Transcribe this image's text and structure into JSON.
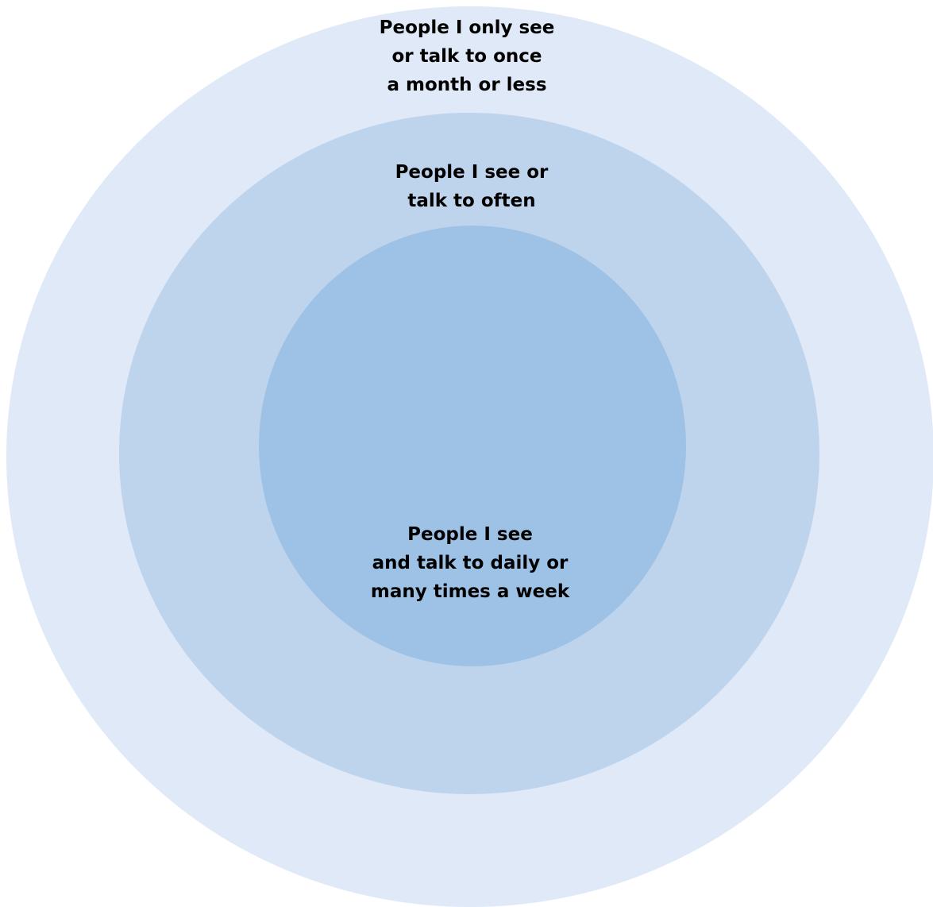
{
  "diagram": {
    "colors": {
      "outer": "#dfe9f7",
      "middle": "#bed4ec",
      "inner": "#9dc2e6",
      "text": "#000000",
      "background": "#ffffff"
    },
    "rings": {
      "outer": {
        "lines": [
          "People I only see",
          "or talk to once",
          "a month or less"
        ]
      },
      "middle": {
        "lines": [
          "People I see or",
          "talk to often"
        ]
      },
      "inner": {
        "lines": [
          "People I see",
          "and talk to daily or",
          "many times a week"
        ]
      }
    }
  }
}
